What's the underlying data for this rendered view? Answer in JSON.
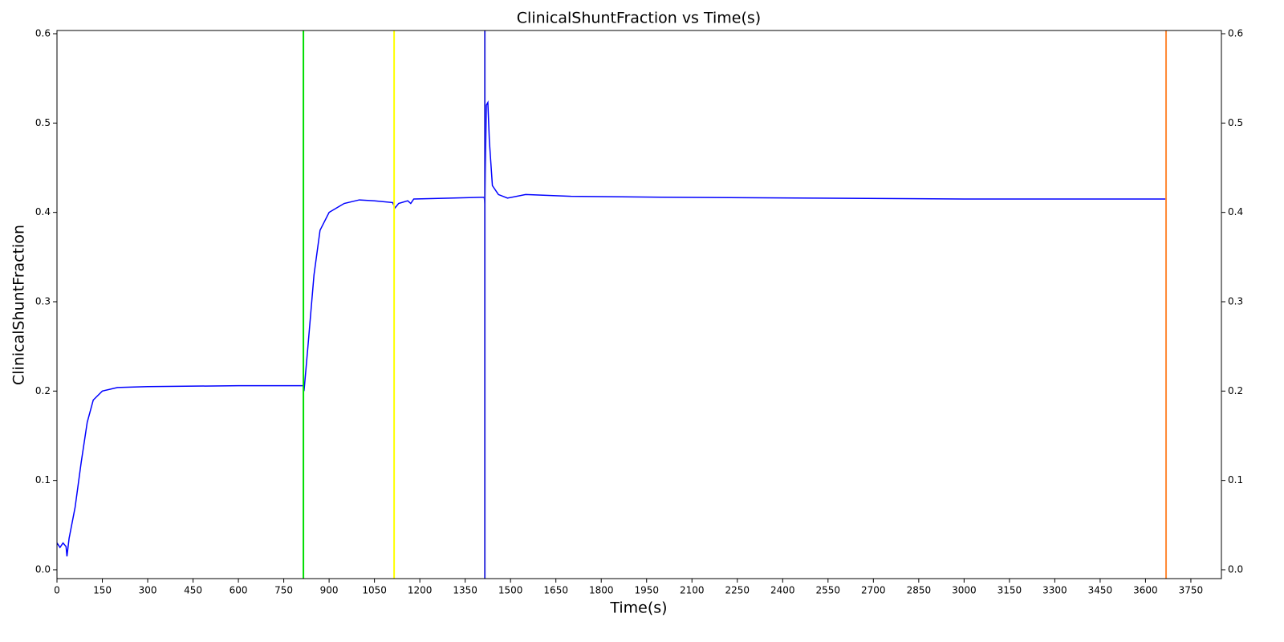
{
  "chart_data": {
    "type": "line",
    "title": "ClinicalShuntFraction vs Time(s)",
    "x_label": "Time(s)",
    "y_label": "ClinicalShuntFraction",
    "x": [
      0,
      10,
      20,
      30,
      33,
      40,
      60,
      80,
      100,
      120,
      150,
      200,
      300,
      600,
      815,
      817,
      830,
      850,
      870,
      900,
      950,
      1000,
      1050,
      1110,
      1118,
      1130,
      1160,
      1170,
      1180,
      1300,
      1413,
      1415,
      1420,
      1425,
      1430,
      1440,
      1460,
      1490,
      1550,
      1700,
      2000,
      2500,
      3000,
      3668
    ],
    "series": [
      {
        "name": "ClinicalShuntFraction",
        "color": "#0000ff",
        "values": [
          0.03,
          0.025,
          0.03,
          0.026,
          0.015,
          0.035,
          0.07,
          0.12,
          0.165,
          0.19,
          0.2,
          0.204,
          0.205,
          0.206,
          0.206,
          0.2,
          0.25,
          0.33,
          0.38,
          0.4,
          0.41,
          0.414,
          0.413,
          0.411,
          0.405,
          0.41,
          0.413,
          0.41,
          0.415,
          0.416,
          0.417,
          0.41,
          0.52,
          0.523,
          0.48,
          0.43,
          0.42,
          0.416,
          0.42,
          0.418,
          0.417,
          0.416,
          0.415,
          0.415
        ]
      }
    ],
    "vlines": [
      {
        "x": 815,
        "color": "#00dd00"
      },
      {
        "x": 1115,
        "color": "#ffff00"
      },
      {
        "x": 1415,
        "color": "#3333dd"
      },
      {
        "x": 3668,
        "color": "#ff8833"
      }
    ],
    "xlim": [
      0,
      3851
    ],
    "xticks": [
      0,
      150,
      300,
      450,
      600,
      750,
      900,
      1050,
      1200,
      1350,
      1500,
      1650,
      1800,
      1950,
      2100,
      2250,
      2400,
      2550,
      2700,
      2850,
      3000,
      3150,
      3300,
      3450,
      3600,
      3750
    ],
    "ylim": [
      -0.0099,
      0.6036
    ],
    "yticks": [
      {
        "value": 0,
        "label": "0.0"
      },
      0.1,
      0.2,
      0.3,
      0.4,
      0.5,
      0.6
    ],
    "y2lim": [
      -0.0099,
      0.6036
    ],
    "y2ticks": [
      {
        "value": 0,
        "label": "0.0"
      },
      0.1,
      0.2,
      0.3,
      0.4,
      0.5,
      0.6
    ]
  }
}
